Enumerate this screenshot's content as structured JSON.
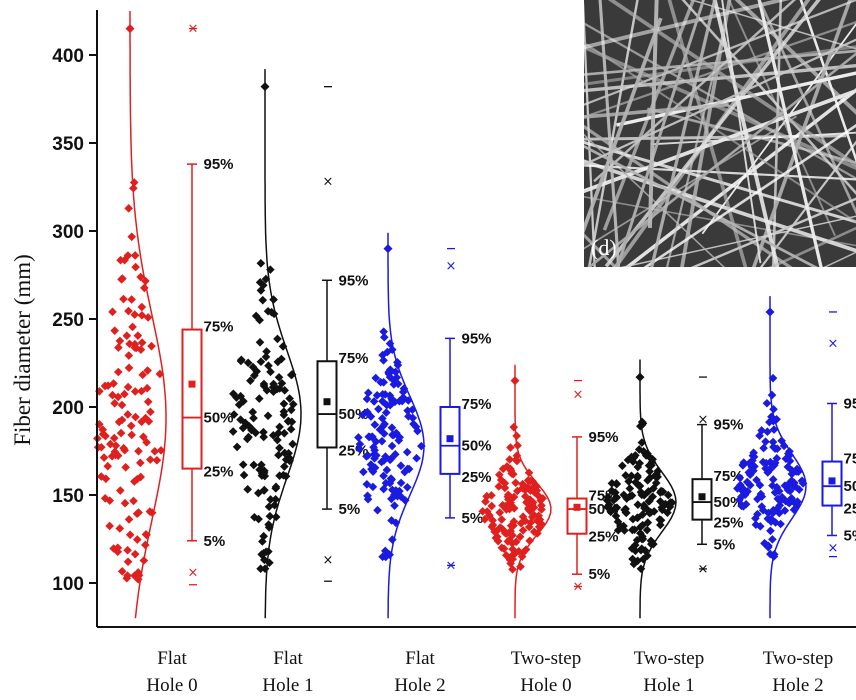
{
  "chart_data": {
    "type": "box",
    "ylabel": "Fiber diameter (mm)",
    "yticks": [
      100,
      150,
      200,
      250,
      300,
      350,
      400
    ],
    "ylim": [
      80,
      425
    ],
    "percentile_labels": [
      "95%",
      "75%",
      "50%",
      "25%",
      "5%"
    ],
    "inset": {
      "label": "(d)"
    },
    "groups": [
      {
        "line1": "Flat",
        "line2": "Hole 0",
        "color": "#e0201e",
        "min": 99,
        "p5": 124,
        "q1": 165,
        "median": 194,
        "mean": 213,
        "q3": 244,
        "p95": 338,
        "max": 415,
        "outliers_low": [
          106
        ],
        "outliers_high": [
          415
        ]
      },
      {
        "line1": "Flat",
        "line2": "Hole 1",
        "color": "#111111",
        "min": 101,
        "p5": 142,
        "q1": 177,
        "median": 196,
        "mean": 203,
        "q3": 226,
        "p95": 272,
        "max": 382,
        "outliers_low": [
          113
        ],
        "outliers_high": [
          328
        ]
      },
      {
        "line1": "Flat",
        "line2": "Hole 2",
        "color": "#1a1ae0",
        "min": 110,
        "p5": 137,
        "q1": 162,
        "median": 178,
        "mean": 182,
        "q3": 200,
        "p95": 239,
        "max": 290,
        "outliers_low": [
          110
        ],
        "outliers_high": [
          280
        ]
      },
      {
        "line1": "Two-step",
        "line2": "Hole 0",
        "color": "#e0201e",
        "min": 98,
        "p5": 105,
        "q1": 128,
        "median": 142,
        "mean": 143,
        "q3": 148,
        "p95": 183,
        "max": 215,
        "outliers_low": [
          98
        ],
        "outliers_high": [
          207
        ]
      },
      {
        "line1": "Two-step",
        "line2": "Hole 1",
        "color": "#111111",
        "min": 108,
        "p5": 122,
        "q1": 136,
        "median": 146,
        "mean": 149,
        "q3": 159,
        "p95": 190,
        "max": 217,
        "outliers_low": [
          108
        ],
        "outliers_high": [
          193
        ]
      },
      {
        "line1": "Two-step",
        "line2": "Hole 2",
        "color": "#1a1ae0",
        "min": 115,
        "p5": 127,
        "q1": 144,
        "median": 155,
        "mean": 158,
        "q3": 169,
        "p95": 202,
        "max": 254,
        "outliers_low": [
          120
        ],
        "outliers_high": [
          236
        ]
      }
    ]
  }
}
